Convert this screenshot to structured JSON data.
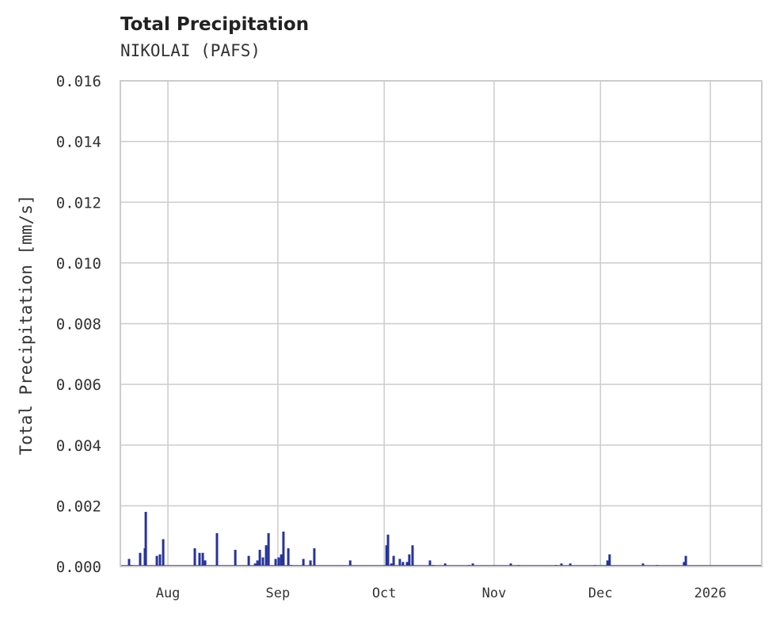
{
  "chart_data": {
    "type": "bar",
    "title": "Total Precipitation",
    "subtitle": "NIKOLAI (PAFS)",
    "xlabel": "",
    "ylabel": "Total Precipitation [mm/s]",
    "ylim": [
      0,
      0.016
    ],
    "xlim": [
      "2025-07-18T14:00:00",
      "2026-01-15T12:00:00"
    ],
    "grid": true,
    "color": "#27339a",
    "yticks": [
      "0.000",
      "0.002",
      "0.004",
      "0.006",
      "0.008",
      "0.010",
      "0.012",
      "0.014",
      "0.016"
    ],
    "xticks": [
      {
        "date": "2025-08-01",
        "label": "Aug"
      },
      {
        "date": "2025-09-01",
        "label": "Sep"
      },
      {
        "date": "2025-10-01",
        "label": "Oct"
      },
      {
        "date": "2025-11-01",
        "label": "Nov"
      },
      {
        "date": "2025-12-01",
        "label": "Dec"
      },
      {
        "date": "2026-01-01",
        "label": "2026"
      }
    ],
    "series": [
      {
        "name": "Total Precipitation",
        "points": [
          [
            "2025-07-21T01:00",
            0.00025
          ],
          [
            "2025-07-21T17:00",
            5e-05
          ],
          [
            "2025-07-24T04:00",
            0.00045
          ],
          [
            "2025-07-25T12:00",
            0.0006
          ],
          [
            "2025-07-25T18:00",
            0.0018
          ],
          [
            "2025-07-28T21:00",
            0.00035
          ],
          [
            "2025-07-29T18:00",
            0.0004
          ],
          [
            "2025-07-30T16:00",
            0.0009
          ],
          [
            "2025-08-08T14:00",
            0.0006
          ],
          [
            "2025-08-09T22:00",
            0.00045
          ],
          [
            "2025-08-10T20:00",
            0.00045
          ],
          [
            "2025-08-11T12:00",
            0.0002
          ],
          [
            "2025-08-14T20:00",
            0.0011
          ],
          [
            "2025-08-20T00:00",
            0.00055
          ],
          [
            "2025-08-23T19:00",
            0.00035
          ],
          [
            "2025-08-25T14:00",
            0.0001
          ],
          [
            "2025-08-26T06:00",
            0.0002
          ],
          [
            "2025-08-26T22:00",
            0.00055
          ],
          [
            "2025-08-27T19:00",
            0.0003
          ],
          [
            "2025-08-28T17:00",
            0.0007
          ],
          [
            "2025-08-29T09:00",
            0.0011
          ],
          [
            "2025-08-31T09:00",
            0.00025
          ],
          [
            "2025-09-01T06:00",
            0.0003
          ],
          [
            "2025-09-01T23:00",
            0.0004
          ],
          [
            "2025-09-02T14:00",
            0.00115
          ],
          [
            "2025-09-03T23:00",
            0.0006
          ],
          [
            "2025-09-04T19:00",
            5e-05
          ],
          [
            "2025-09-08T05:00",
            0.00025
          ],
          [
            "2025-09-10T05:00",
            0.0002
          ],
          [
            "2025-09-11T07:00",
            0.0006
          ],
          [
            "2025-09-21T10:00",
            0.0002
          ],
          [
            "2025-10-01T16:00",
            0.0007
          ],
          [
            "2025-10-02T02:00",
            0.00105
          ],
          [
            "2025-10-03T00:00",
            0.0001
          ],
          [
            "2025-10-03T16:00",
            0.00035
          ],
          [
            "2025-10-05T10:00",
            0.00025
          ],
          [
            "2025-10-06T07:00",
            0.00015
          ],
          [
            "2025-10-07T11:00",
            0.00015
          ],
          [
            "2025-10-08T02:00",
            0.0004
          ],
          [
            "2025-10-09T00:00",
            0.0007
          ],
          [
            "2025-10-13T22:00",
            0.0002
          ],
          [
            "2025-10-14T19:00",
            5e-05
          ],
          [
            "2025-10-18T05:00",
            0.0001
          ],
          [
            "2025-10-24T22:00",
            5e-05
          ],
          [
            "2025-10-26T00:00",
            0.0001
          ],
          [
            "2025-11-05T17:00",
            0.0001
          ],
          [
            "2025-11-07T23:00",
            5e-05
          ],
          [
            "2025-11-18T10:00",
            5e-05
          ],
          [
            "2025-11-20T00:00",
            0.0001
          ],
          [
            "2025-11-22T12:00",
            0.0001
          ],
          [
            "2025-11-29T10:00",
            5e-05
          ],
          [
            "2025-12-03T00:00",
            0.0002
          ],
          [
            "2025-12-03T14:00",
            0.0004
          ],
          [
            "2025-12-13T00:00",
            0.0001
          ],
          [
            "2025-12-17T00:00",
            5e-05
          ],
          [
            "2025-12-24T14:00",
            0.00015
          ],
          [
            "2025-12-25T02:00",
            0.00035
          ]
        ]
      }
    ]
  }
}
